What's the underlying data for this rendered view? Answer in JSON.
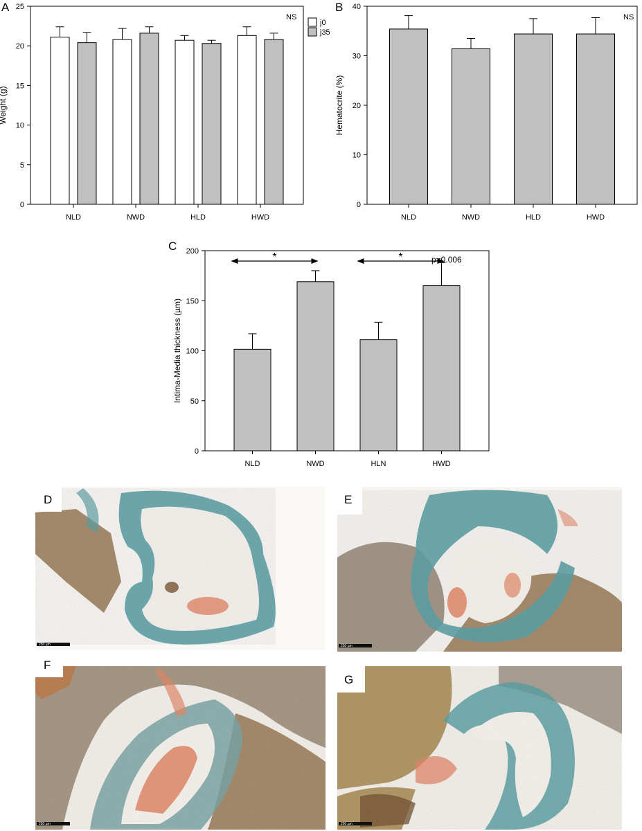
{
  "panel_letters": {
    "A": "A",
    "B": "B",
    "C": "C",
    "D": "D",
    "E": "E",
    "F": "F",
    "G": "G"
  },
  "annotations": {
    "A_ns": "NS",
    "B_ns": "NS",
    "C_p": "p=0.006",
    "C_star": "*"
  },
  "micrographs": {
    "scale_bar_label": "250 µm",
    "panels": [
      "D",
      "E",
      "F",
      "G"
    ]
  },
  "colors": {
    "bar_grey": "#c0c0c0",
    "bar_white": "#ffffff",
    "stroke": "#000000",
    "tissue_blue": "#5fa3a8",
    "tissue_brown": "#9a7a55",
    "blood_red": "#e58a6a"
  },
  "chart_data": [
    {
      "id": "A",
      "type": "bar",
      "categories": [
        "NLD",
        "NWD",
        "HLD",
        "HWD"
      ],
      "ylabel": "Weight (g)",
      "xlabel": "",
      "ylim": [
        0,
        25
      ],
      "yticks": [
        0,
        5,
        10,
        15,
        20,
        25
      ],
      "legend": "top-right",
      "series": [
        {
          "name": "j0",
          "color": "#ffffff",
          "values": [
            21.1,
            20.8,
            20.7,
            21.3
          ],
          "errors": [
            1.3,
            1.4,
            0.6,
            1.1
          ]
        },
        {
          "name": "j35",
          "color": "#c0c0c0",
          "values": [
            20.4,
            21.6,
            20.3,
            20.8
          ],
          "errors": [
            1.3,
            0.8,
            0.4,
            0.8
          ]
        }
      ]
    },
    {
      "id": "B",
      "type": "bar",
      "categories": [
        "NLD",
        "NWD",
        "HLD",
        "HWD"
      ],
      "ylabel": "Hematocrite (%)",
      "xlabel": "",
      "ylim": [
        0,
        40
      ],
      "yticks": [
        0,
        10,
        20,
        30,
        40
      ],
      "series": [
        {
          "color": "#c0c0c0",
          "values": [
            35.4,
            31.4,
            34.4,
            34.4
          ],
          "errors": [
            2.7,
            2.1,
            3.1,
            3.3
          ]
        }
      ]
    },
    {
      "id": "C",
      "type": "bar",
      "categories": [
        "NLD",
        "NWD",
        "HLN",
        "HWD"
      ],
      "ylabel": "Intima-Media thickness (µm)",
      "xlabel": "",
      "ylim": [
        0,
        200
      ],
      "yticks": [
        0,
        50,
        100,
        150,
        200
      ],
      "series": [
        {
          "color": "#c0c0c0",
          "values": [
            101.5,
            169,
            111,
            165
          ],
          "errors": [
            15.5,
            11,
            17.5,
            23
          ]
        }
      ],
      "comparisons": [
        {
          "from": "NLD",
          "to": "NWD",
          "label": "*"
        },
        {
          "from": "HLN",
          "to": "HWD",
          "label": "*"
        }
      ]
    }
  ]
}
